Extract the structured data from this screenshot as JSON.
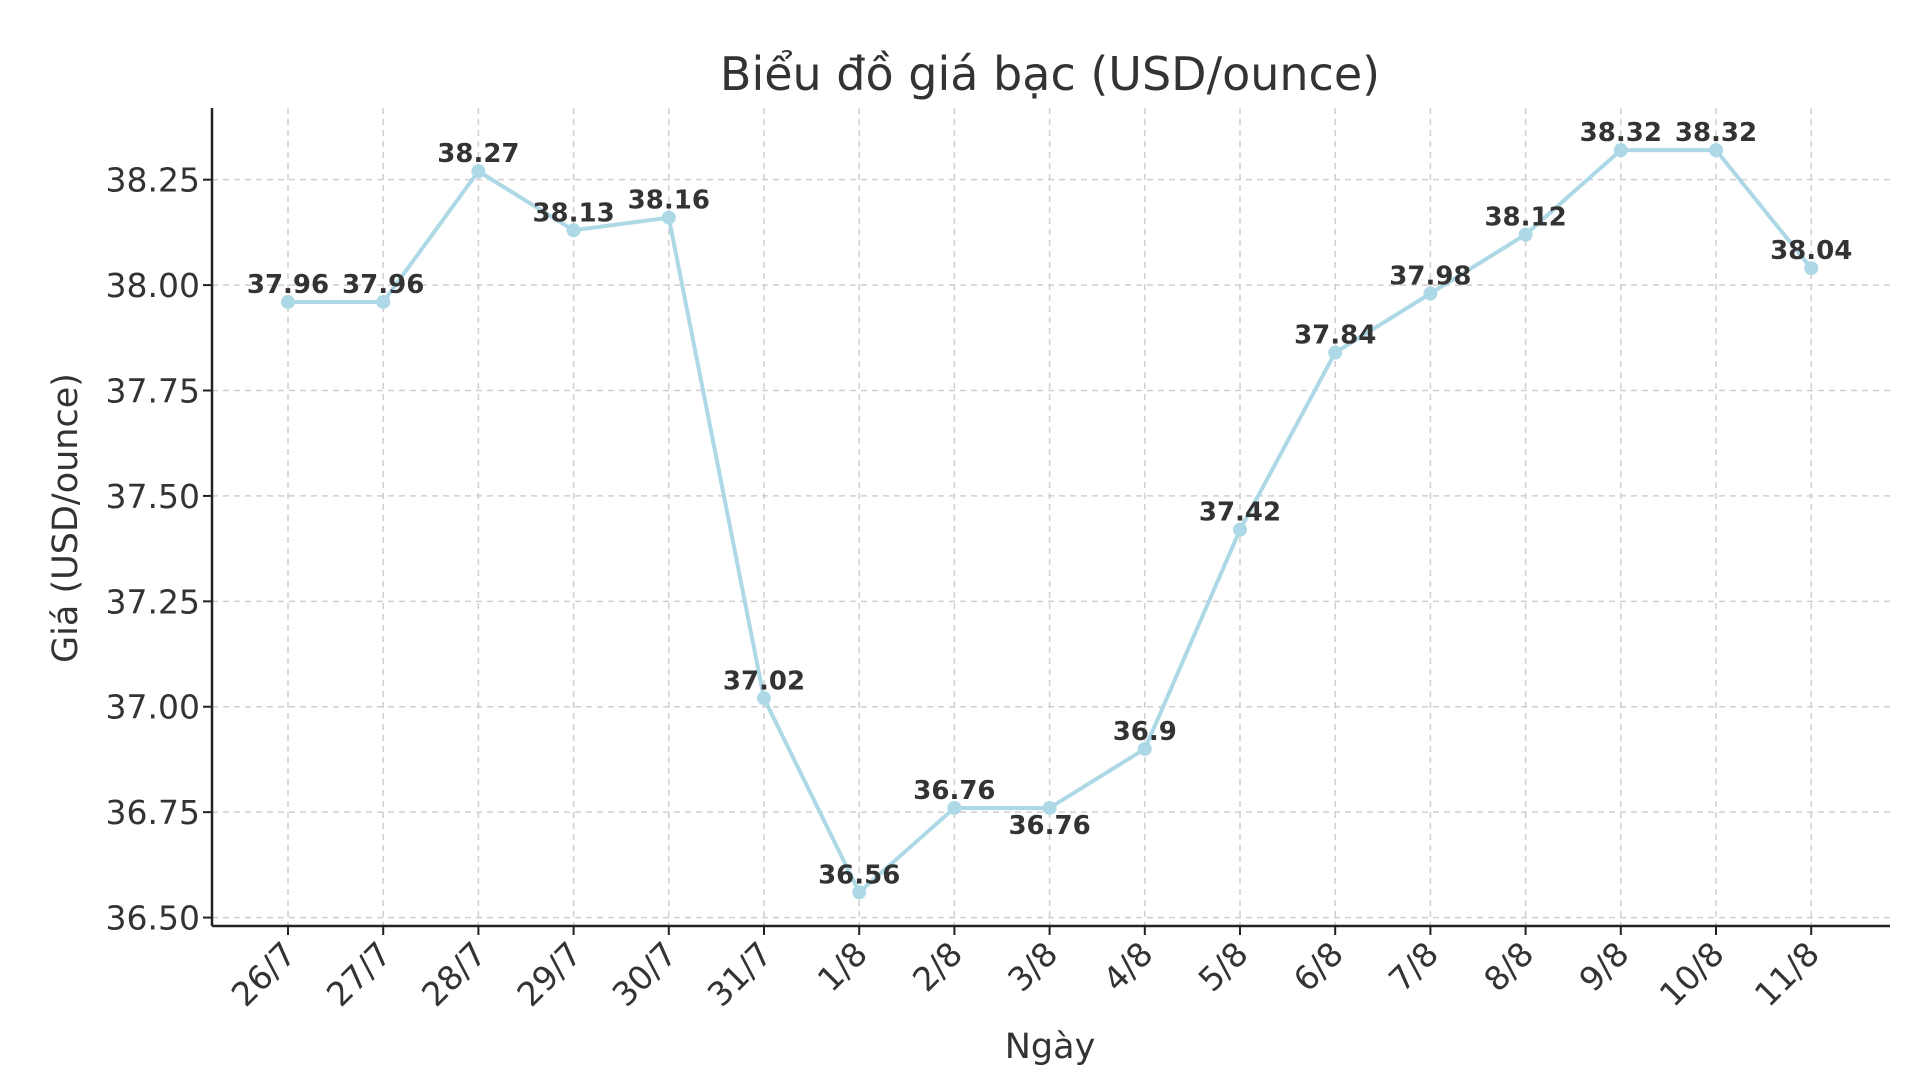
{
  "chart_data": {
    "type": "line",
    "title": "Biểu đồ giá bạc (USD/ounce)",
    "xlabel": "Ngày",
    "ylabel": "Giá (USD/ounce)",
    "categories": [
      "26/7",
      "27/7",
      "28/7",
      "29/7",
      "30/7",
      "31/7",
      "1/8",
      "2/8",
      "3/8",
      "4/8",
      "5/8",
      "6/8",
      "7/8",
      "8/8",
      "9/8",
      "10/8",
      "11/8"
    ],
    "values": [
      37.96,
      37.96,
      38.27,
      38.13,
      38.16,
      37.02,
      36.56,
      36.76,
      36.76,
      36.9,
      37.42,
      37.84,
      37.98,
      38.12,
      38.32,
      38.32,
      38.04
    ],
    "data_labels": [
      "37.96",
      "37.96",
      "38.27",
      "38.13",
      "38.16",
      "37.02",
      "36.56",
      "36.76",
      "36.76",
      "36.9",
      "37.42",
      "37.84",
      "37.98",
      "38.12",
      "38.32",
      "38.32",
      "38.04"
    ],
    "ylim": [
      36.48,
      38.42
    ],
    "yticks": [
      36.5,
      36.75,
      37.0,
      37.25,
      37.5,
      37.75,
      38.0,
      38.25
    ],
    "ytick_labels": [
      "36.50",
      "36.75",
      "37.00",
      "37.25",
      "37.50",
      "37.75",
      "38.00",
      "38.25"
    ],
    "grid": true,
    "line_color": "#add8e6"
  }
}
